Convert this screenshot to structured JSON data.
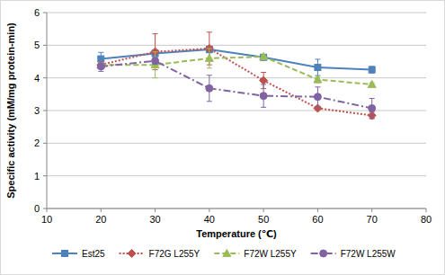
{
  "chart_data": {
    "type": "line",
    "x_label": "Temperature (℃)",
    "y_label": "Specific activity (mM/mg protein-min)",
    "x": [
      20,
      30,
      40,
      50,
      60,
      70
    ],
    "xlim": [
      10,
      80
    ],
    "xticks": [
      10,
      20,
      30,
      40,
      50,
      60,
      70,
      80
    ],
    "ylim": [
      0,
      6
    ],
    "yticks": [
      0,
      1,
      2,
      3,
      4,
      5,
      6
    ],
    "grid": true,
    "legend": "bottom",
    "series": [
      {
        "name": "Est25",
        "color": "#4f81bd",
        "marker": "square",
        "line_style": "solid",
        "values": [
          4.58,
          4.75,
          4.87,
          4.63,
          4.32,
          4.25
        ],
        "errors": [
          0.2,
          0.1,
          0.1,
          0.05,
          0.25,
          0.1
        ]
      },
      {
        "name": "F72G L255Y",
        "color": "#c0504d",
        "marker": "diamond",
        "line_style": "dotted",
        "values": [
          4.4,
          4.8,
          4.9,
          3.92,
          3.07,
          2.85
        ],
        "errors": [
          0.1,
          0.55,
          0.5,
          0.25,
          0.05,
          0.1
        ]
      },
      {
        "name": "F72W L255Y",
        "color": "#9bbb59",
        "marker": "triangle",
        "line_style": "dashed",
        "values": [
          4.4,
          4.4,
          4.6,
          4.65,
          3.95,
          3.8
        ],
        "errors": [
          0.1,
          0.4,
          0.3,
          0.05,
          0.1,
          0.05
        ]
      },
      {
        "name": "F72W L255W",
        "color": "#8064a2",
        "marker": "circle",
        "line_style": "dashdot",
        "values": [
          4.35,
          4.52,
          3.68,
          3.45,
          3.42,
          3.07
        ],
        "errors": [
          0.15,
          0.1,
          0.4,
          0.35,
          0.3,
          0.3
        ]
      }
    ]
  }
}
